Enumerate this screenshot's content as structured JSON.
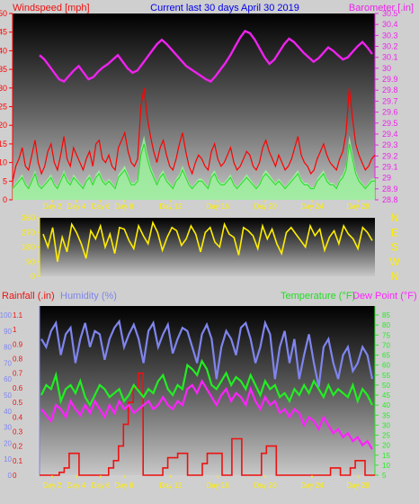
{
  "colors": {
    "wind": "#ff0000",
    "gust_fill": "#9cf29c",
    "wind_avg": "#22dd22",
    "barometer": "#ee22ee",
    "direction": "#ffee00",
    "humidity": "#7f85ee",
    "temperature": "#22ee22",
    "dewpoint": "#ff22ff",
    "rainfall": "#ee1111",
    "title": "#0000ee",
    "axis": "#ffffff"
  },
  "top": {
    "left_label": "Windspeed [mph]",
    "center_label": "Current last 30 days April 30 2019",
    "right_label": "Barometer [.in]"
  },
  "bottom": {
    "rain_label": "Rainfall (.in)",
    "humidity_label": "Humidity (%)",
    "temperature_label": "Temperature (°F)",
    "dewpoint_label": "Dew Point (°F)"
  },
  "chart_data": [
    {
      "type": "line",
      "series": [
        {
          "name": "Windspeed [mph]",
          "values": [
            5,
            9,
            11,
            14,
            9,
            8,
            12,
            16,
            10,
            7,
            9,
            13,
            15,
            10,
            8,
            12,
            17,
            11,
            9,
            14,
            12,
            10,
            8,
            11,
            13,
            9,
            15,
            16,
            11,
            10,
            12,
            9,
            8,
            14,
            16,
            18,
            13,
            10,
            9,
            11,
            25,
            30,
            22,
            17,
            13,
            10,
            14,
            16,
            12,
            9,
            8,
            11,
            15,
            18,
            13,
            9,
            7,
            10,
            12,
            11,
            9,
            8,
            13,
            15,
            11,
            9,
            10,
            12,
            14,
            10,
            8,
            9,
            11,
            13,
            12,
            9,
            8,
            10,
            14,
            16,
            13,
            11,
            9,
            12,
            10,
            8,
            9,
            11,
            14,
            17,
            12,
            10,
            9,
            7,
            8,
            11,
            13,
            15,
            12,
            10,
            9,
            8,
            11,
            13,
            18,
            30,
            22,
            15,
            12,
            10,
            8,
            9,
            11,
            12
          ]
        },
        {
          "name": "",
          "values": [
            3,
            4,
            5,
            6,
            4,
            3,
            5,
            7,
            4,
            3,
            4,
            5,
            6,
            4,
            3,
            5,
            7,
            5,
            4,
            6,
            5,
            4,
            3,
            5,
            6,
            4,
            6,
            7,
            5,
            4,
            5,
            4,
            3,
            6,
            7,
            8,
            6,
            4,
            4,
            5,
            12,
            15,
            11,
            8,
            6,
            4,
            6,
            7,
            5,
            4,
            3,
            5,
            6,
            8,
            6,
            4,
            3,
            4,
            5,
            5,
            4,
            3,
            6,
            7,
            5,
            4,
            4,
            5,
            6,
            4,
            3,
            4,
            5,
            6,
            5,
            4,
            3,
            4,
            6,
            7,
            6,
            5,
            4,
            5,
            4,
            3,
            4,
            5,
            6,
            7,
            5,
            4,
            4,
            3,
            3,
            5,
            6,
            7,
            5,
            4,
            4,
            3,
            5,
            6,
            8,
            15,
            11,
            7,
            5,
            4,
            3,
            4,
            5,
            5
          ]
        }
      ],
      "barometer": [
        30.12,
        30.08,
        30.02,
        29.96,
        29.9,
        29.88,
        29.93,
        29.98,
        30.02,
        29.96,
        29.9,
        29.92,
        29.97,
        30.01,
        30.04,
        30.08,
        30.12,
        30.06,
        30.0,
        29.96,
        29.98,
        30.04,
        30.1,
        30.16,
        30.22,
        30.26,
        30.22,
        30.17,
        30.12,
        30.07,
        30.02,
        29.99,
        29.96,
        29.93,
        29.9,
        29.88,
        29.93,
        29.99,
        30.05,
        30.12,
        30.2,
        30.28,
        30.34,
        30.32,
        30.26,
        30.18,
        30.1,
        30.04,
        30.08,
        30.15,
        30.22,
        30.27,
        30.24,
        30.19,
        30.14,
        30.1,
        30.06,
        30.09,
        30.14,
        30.19,
        30.16,
        30.12,
        30.08,
        30.1,
        30.15,
        30.2,
        30.24,
        30.19,
        30.13
      ],
      "direction": [
        260,
        180,
        300,
        90,
        240,
        150,
        320,
        270,
        200,
        110,
        280,
        230,
        310,
        180,
        260,
        140,
        300,
        290,
        220,
        170,
        310,
        250,
        200,
        330,
        270,
        160,
        240,
        300,
        280,
        190,
        230,
        310,
        260,
        150,
        270,
        300,
        210,
        180,
        320,
        260,
        240,
        130,
        300,
        280,
        250,
        170,
        310,
        230,
        290,
        200,
        140,
        270,
        300,
        260,
        220,
        180,
        310,
        250,
        290,
        160,
        240,
        280,
        200,
        310,
        260,
        230,
        170,
        300,
        270,
        220
      ],
      "y_left_ticks": [
        "0",
        "5",
        "10",
        "15",
        "20",
        "25",
        "30",
        "35",
        "40",
        "45",
        "50"
      ],
      "y_right_ticks": [
        "28.8",
        "28.9",
        "29",
        "29.1",
        "29.2",
        "29.3",
        "29.4",
        "29.5",
        "29.6",
        "29.7",
        "29.8",
        "29.9",
        "30",
        "30.1",
        "30.2",
        "30.3",
        "30.4",
        "30.5"
      ],
      "dir_ticks": [
        "0",
        "90",
        "180",
        "270",
        "360"
      ],
      "dir_letters": [
        "N",
        "W",
        "S",
        "E",
        "N"
      ],
      "x_ticks": [
        "Day 2",
        "Day 4",
        "Day 6",
        "Day 8",
        "Day 12",
        "Day 16",
        "Day 20",
        "Day 24",
        "Day 28"
      ]
    },
    {
      "type": "line",
      "rain": [
        0,
        0,
        0,
        0,
        0.02,
        0.05,
        0.15,
        0.15,
        0,
        0,
        0,
        0,
        0,
        0,
        0.05,
        0.1,
        0.2,
        0.35,
        0.5,
        0.6,
        0.7,
        0,
        0,
        0,
        0,
        0.05,
        0.12,
        0.12,
        0.15,
        0.15,
        0,
        0,
        0,
        0.08,
        0.15,
        0.15,
        0.15,
        0,
        0,
        0.25,
        0.25,
        0,
        0,
        0,
        0,
        0.15,
        0.2,
        0.2,
        0,
        0,
        0,
        0,
        0,
        0,
        0,
        0,
        0,
        0,
        0,
        0.05,
        0.05,
        0,
        0,
        0.05,
        0.1,
        0.1,
        0,
        0
      ],
      "humidity": [
        85,
        80,
        90,
        95,
        75,
        88,
        92,
        70,
        85,
        95,
        80,
        90,
        88,
        72,
        85,
        92,
        96,
        80,
        88,
        94,
        85,
        70,
        90,
        95,
        80,
        88,
        94,
        76,
        85,
        92,
        90,
        80,
        70,
        88,
        94,
        85,
        60,
        80,
        90,
        85,
        75,
        92,
        95,
        85,
        70,
        80,
        95,
        88,
        60,
        80,
        90,
        70,
        85,
        60,
        75,
        88,
        70,
        55,
        80,
        85,
        70,
        60,
        75,
        80,
        65,
        70,
        80,
        75,
        60
      ],
      "temperature": [
        45,
        50,
        48,
        55,
        42,
        48,
        50,
        46,
        52,
        44,
        40,
        45,
        50,
        48,
        44,
        46,
        48,
        42,
        45,
        50,
        47,
        44,
        48,
        46,
        52,
        55,
        48,
        45,
        50,
        48,
        60,
        58,
        55,
        62,
        58,
        50,
        48,
        52,
        56,
        50,
        54,
        52,
        48,
        55,
        50,
        45,
        52,
        48,
        50,
        44,
        46,
        42,
        48,
        45,
        50,
        46,
        52,
        48,
        44,
        50,
        45,
        48,
        46,
        44,
        50,
        42,
        48,
        45,
        40
      ],
      "dewpoint": [
        38,
        35,
        32,
        40,
        38,
        34,
        42,
        38,
        35,
        40,
        36,
        42,
        38,
        34,
        40,
        36,
        42,
        38,
        40,
        36,
        38,
        40,
        42,
        38,
        40,
        44,
        40,
        38,
        42,
        40,
        48,
        50,
        46,
        52,
        48,
        44,
        40,
        45,
        48,
        42,
        46,
        44,
        40,
        48,
        42,
        38,
        44,
        40,
        42,
        36,
        38,
        34,
        38,
        36,
        30,
        34,
        32,
        28,
        34,
        30,
        26,
        28,
        24,
        26,
        22,
        24,
        20,
        22,
        18
      ],
      "y_rain_ticks": [
        "0",
        "0.1",
        "0.2",
        "0.3",
        "0.4",
        "0.5",
        "0.6",
        "0.7",
        "0.8",
        "0.9",
        "1",
        "1.1"
      ],
      "y_humidity_ticks": [
        "0",
        "10",
        "20",
        "30",
        "40",
        "50",
        "60",
        "70",
        "80",
        "90",
        "100"
      ],
      "y_temp_ticks": [
        "5",
        "10",
        "15",
        "20",
        "25",
        "30",
        "35",
        "40",
        "45",
        "50",
        "55",
        "60",
        "65",
        "70",
        "75",
        "80",
        "85"
      ],
      "x_ticks": [
        "Day 2",
        "Day 4",
        "Day 6",
        "Day 8",
        "Day 12",
        "Day 16",
        "Day 20",
        "Day 24",
        "Day 28"
      ]
    }
  ]
}
